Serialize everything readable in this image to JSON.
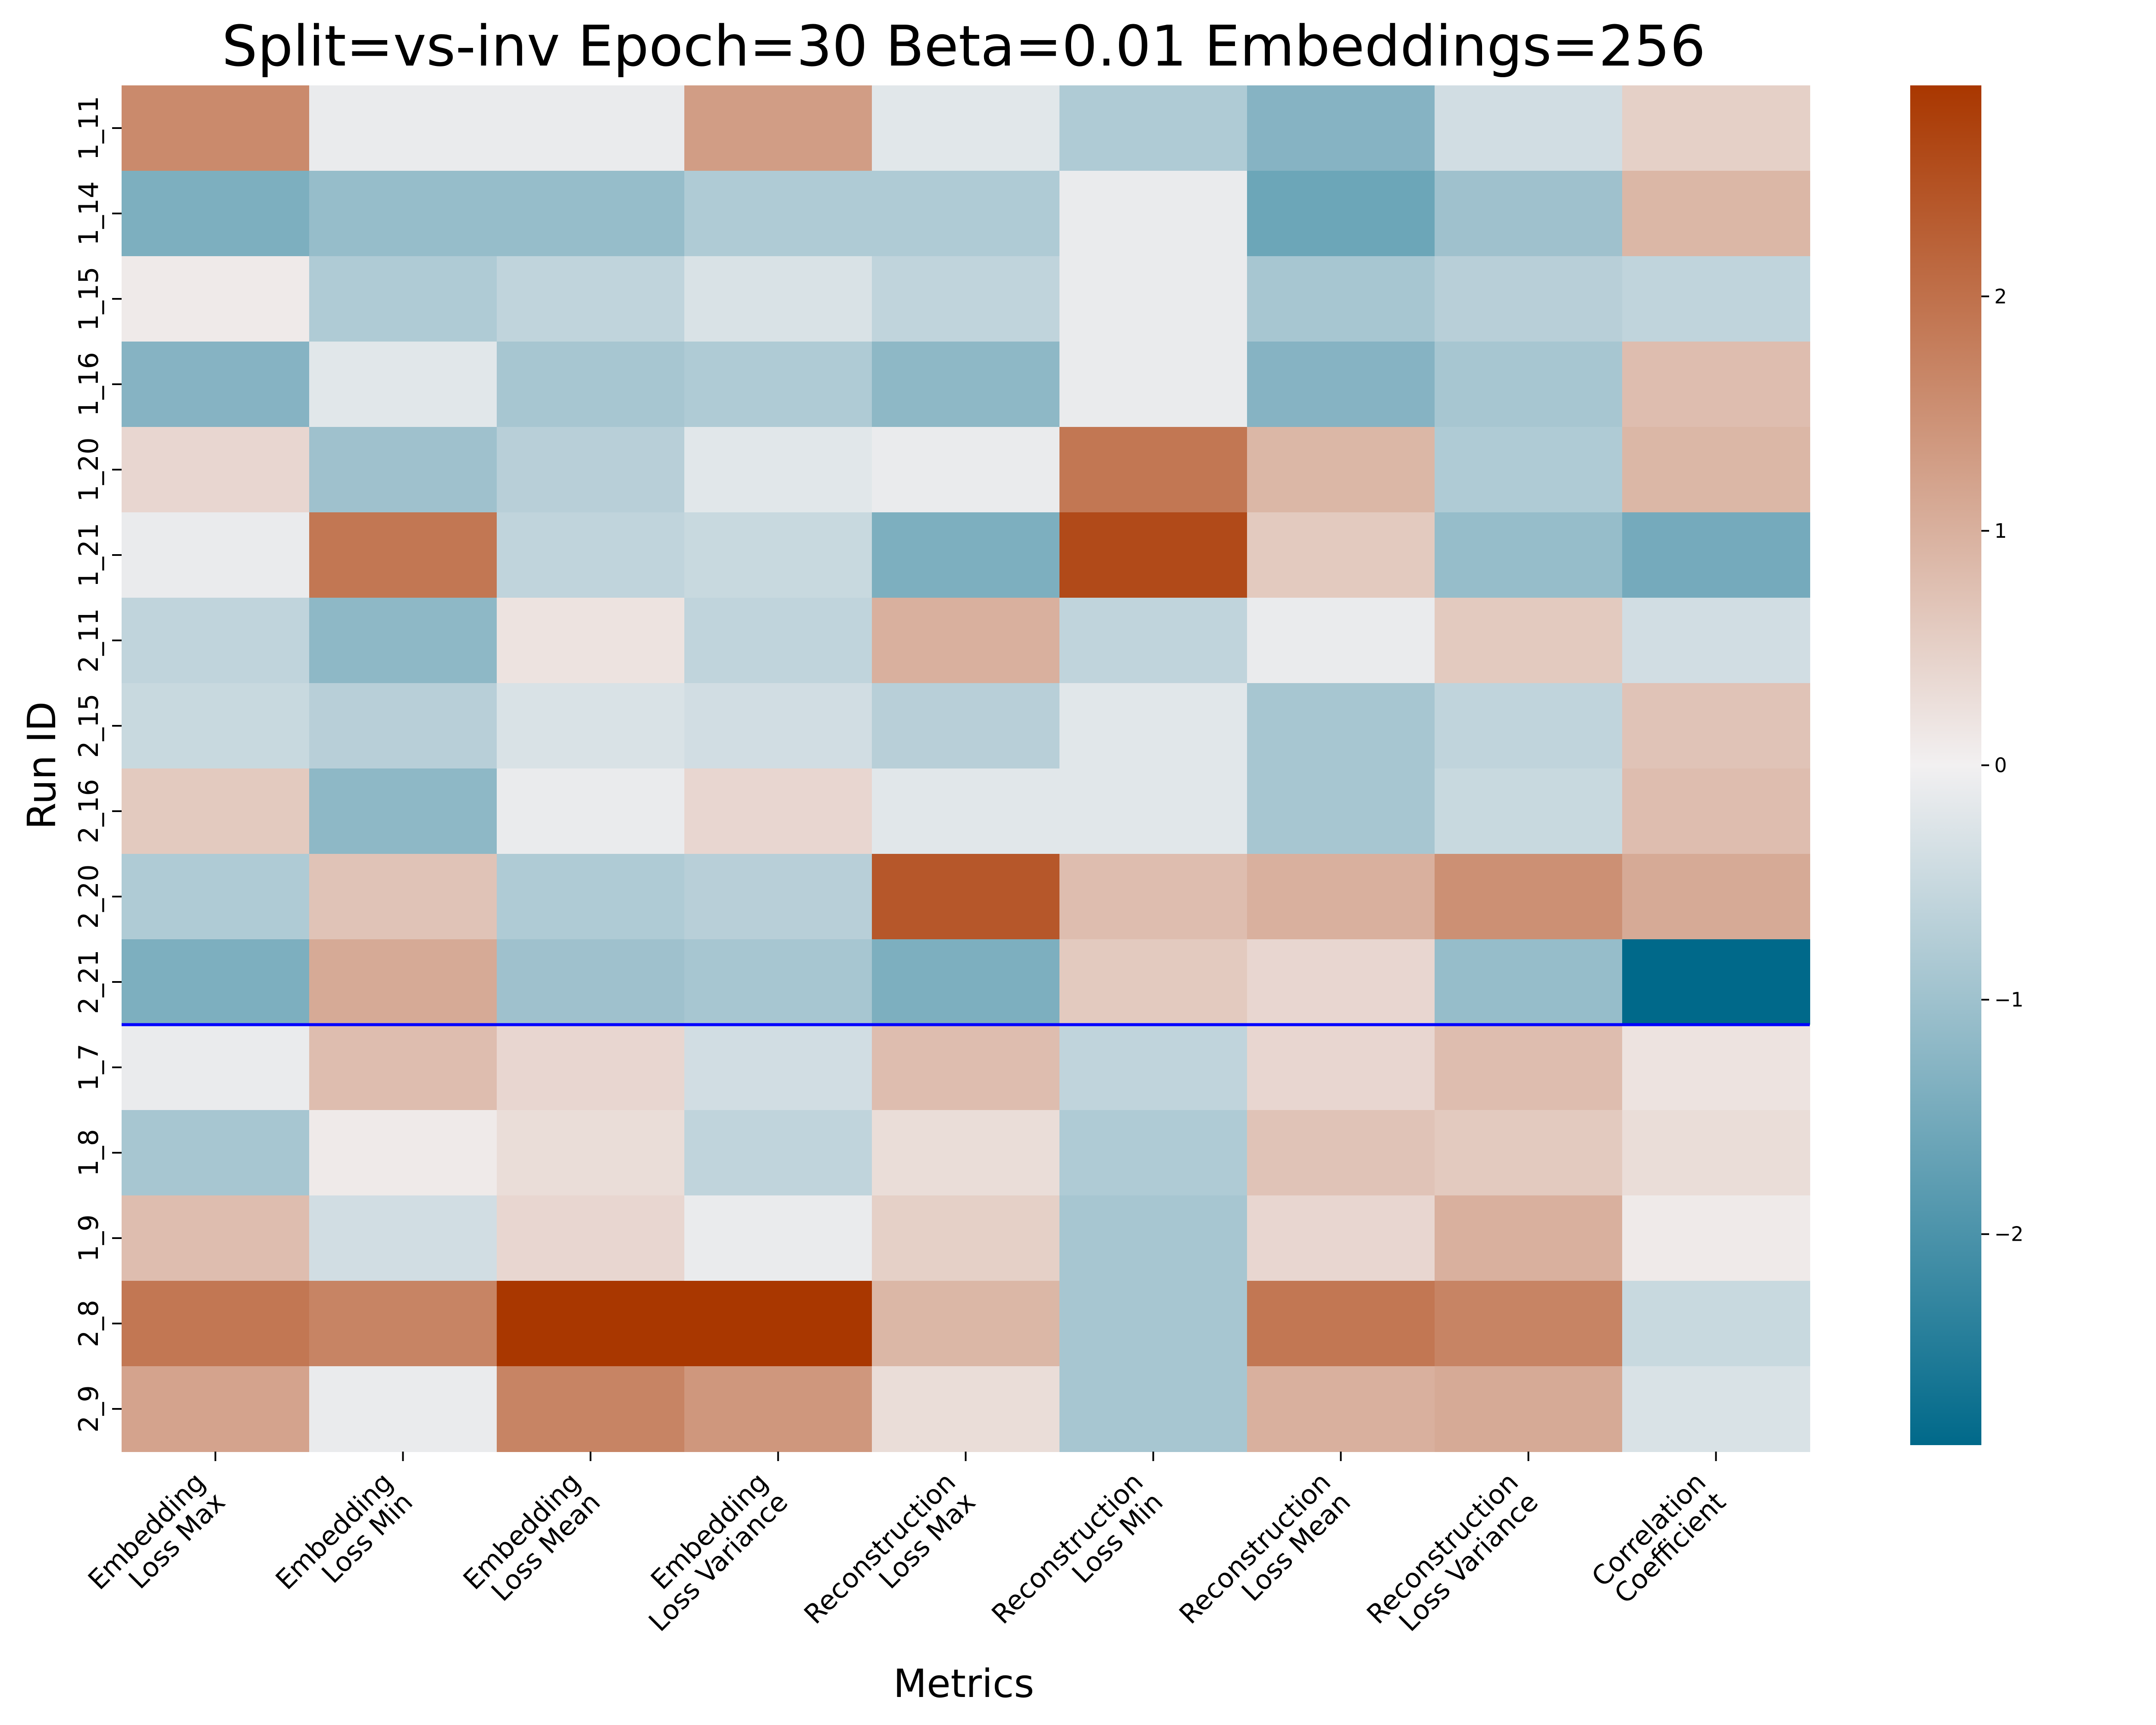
{
  "chart_data": {
    "type": "heatmap",
    "title": "Split=vs-inv Epoch=30 Beta=0.01 Embeddings=256",
    "xlabel": "Metrics",
    "ylabel": "Run ID",
    "columns": [
      [
        "Embedding",
        "Loss Max"
      ],
      [
        "Embedding",
        "Loss Min"
      ],
      [
        "Embedding",
        "Loss Mean"
      ],
      [
        "Embedding",
        "Loss Variance"
      ],
      [
        "Reconstruction",
        "Loss Max"
      ],
      [
        "Reconstruction",
        "Loss Min"
      ],
      [
        "Reconstruction",
        "Loss Mean"
      ],
      [
        "Reconstruction",
        "Loss Variance"
      ],
      [
        "Correlation",
        "Coefficient"
      ]
    ],
    "rows": [
      "1_11",
      "1_14",
      "1_15",
      "1_16",
      "1_20",
      "1_21",
      "2_11",
      "2_15",
      "2_16",
      "2_20",
      "2_21",
      "1_7",
      "1_8",
      "1_9",
      "2_8",
      "2_9"
    ],
    "values": [
      [
        1.6,
        -0.1,
        -0.1,
        1.3,
        -0.2,
        -0.8,
        -1.3,
        -0.4,
        0.5
      ],
      [
        -1.4,
        -1.1,
        -1.1,
        -0.8,
        -0.8,
        -0.1,
        -1.6,
        -1.0,
        0.9
      ],
      [
        0.1,
        -0.8,
        -0.6,
        -0.3,
        -0.6,
        -0.1,
        -0.9,
        -0.7,
        -0.6
      ],
      [
        -1.3,
        -0.2,
        -0.9,
        -0.8,
        -1.2,
        -0.1,
        -1.3,
        -0.9,
        0.8
      ],
      [
        0.4,
        -1.0,
        -0.7,
        -0.2,
        -0.1,
        1.9,
        0.9,
        -0.8,
        0.9
      ],
      [
        -0.1,
        1.9,
        -0.6,
        -0.5,
        -1.4,
        2.6,
        0.6,
        -1.1,
        -1.5
      ],
      [
        -0.6,
        -1.2,
        0.2,
        -0.6,
        1.0,
        -0.6,
        -0.1,
        0.6,
        -0.4
      ],
      [
        -0.5,
        -0.7,
        -0.3,
        -0.4,
        -0.7,
        -0.2,
        -0.9,
        -0.6,
        0.7
      ],
      [
        0.6,
        -1.2,
        -0.1,
        0.4,
        -0.2,
        -0.2,
        -0.9,
        -0.5,
        0.8
      ],
      [
        -0.8,
        0.7,
        -0.8,
        -0.7,
        2.4,
        0.8,
        1.0,
        1.5,
        1.1
      ],
      [
        -1.4,
        1.1,
        -1.0,
        -0.9,
        -1.4,
        0.6,
        0.4,
        -1.1,
        -2.9
      ],
      [
        -0.1,
        0.8,
        0.4,
        -0.4,
        0.8,
        -0.6,
        0.4,
        0.8,
        0.2
      ],
      [
        -0.9,
        0.1,
        0.3,
        -0.6,
        0.3,
        -0.8,
        0.7,
        0.6,
        0.3
      ],
      [
        0.8,
        -0.4,
        0.4,
        -0.1,
        0.5,
        -0.9,
        0.4,
        1.0,
        0.1
      ],
      [
        1.9,
        1.7,
        2.9,
        2.9,
        0.9,
        -0.9,
        1.9,
        1.7,
        -0.5
      ],
      [
        1.2,
        -0.1,
        1.7,
        1.4,
        0.3,
        -0.9,
        1.0,
        1.1,
        -0.3
      ]
    ],
    "vmin": -2.9,
    "vmax": 2.9,
    "colorbar_ticks": [
      2,
      1,
      0,
      -1,
      -2
    ],
    "colorbar_tick_labels": [
      "2",
      "1",
      "0",
      "−1",
      "−2"
    ],
    "separator_after_row": "2_21",
    "separator_color": "#0000ff",
    "colormap": {
      "negative": "#00698a",
      "center": "#f2f0f1",
      "positive": "#a93700"
    }
  }
}
